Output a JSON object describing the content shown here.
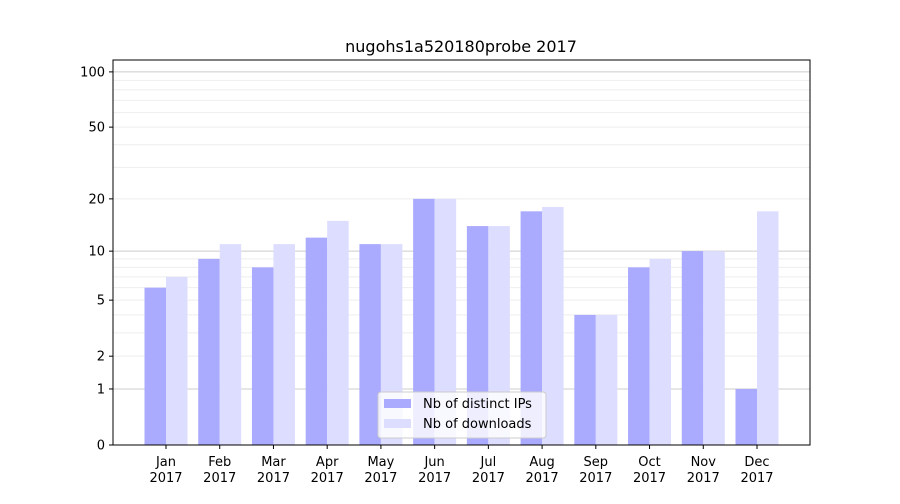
{
  "chart_data": {
    "type": "bar",
    "title": "nugohs1a520180probe 2017",
    "xlabel": "",
    "ylabel": "",
    "yscale": "log(1+y)",
    "ylim": [
      0,
      116
    ],
    "yticks": [
      0,
      1,
      2,
      5,
      10,
      20,
      50,
      100
    ],
    "grid": true,
    "legend_position": "bottom-center",
    "categories": [
      "Jan\n2017",
      "Feb\n2017",
      "Mar\n2017",
      "Apr\n2017",
      "May\n2017",
      "Jun\n2017",
      "Jul\n2017",
      "Aug\n2017",
      "Sep\n2017",
      "Oct\n2017",
      "Nov\n2017",
      "Dec\n2017"
    ],
    "series": [
      {
        "name": "Nb of distinct IPs",
        "color": "#aaaaff",
        "values": [
          6,
          9,
          8,
          12,
          11,
          20,
          14,
          17,
          4,
          8,
          10,
          1
        ]
      },
      {
        "name": "Nb of downloads",
        "color": "#ddddff",
        "values": [
          7,
          11,
          11,
          15,
          11,
          20,
          14,
          18,
          4,
          9,
          10,
          17
        ]
      }
    ]
  }
}
